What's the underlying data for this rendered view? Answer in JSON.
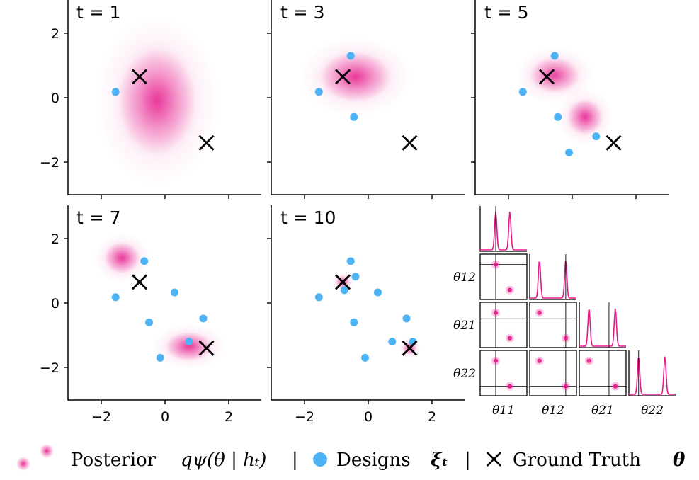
{
  "chart_data": {
    "type": "scatter",
    "xlim": [
      -3,
      3
    ],
    "ylim": [
      -3,
      3
    ],
    "xticks": [
      "−2",
      "0",
      "2"
    ],
    "yticks": [
      "2",
      "0",
      "−2"
    ],
    "ground_truth": [
      [
        -0.8,
        0.65
      ],
      [
        1.3,
        -1.4
      ]
    ],
    "panels": [
      {
        "title": "t = 1",
        "designs": [
          [
            -1.55,
            0.18
          ]
        ],
        "posterior": [
          {
            "cx": -0.25,
            "cy": -0.1,
            "sx": 0.55,
            "sy": 0.75,
            "w": 1.0
          }
        ]
      },
      {
        "title": "t = 3",
        "designs": [
          [
            -1.55,
            0.18
          ],
          [
            -0.55,
            1.3
          ],
          [
            -0.45,
            -0.6
          ]
        ],
        "posterior": [
          {
            "cx": -0.4,
            "cy": 0.65,
            "sx": 0.5,
            "sy": 0.35,
            "w": 1.0
          }
        ]
      },
      {
        "title": "t = 5",
        "designs": [
          [
            -1.55,
            0.18
          ],
          [
            -0.55,
            1.3
          ],
          [
            -0.45,
            -0.6
          ],
          [
            -0.1,
            -1.7
          ],
          [
            0.75,
            -1.2
          ]
        ],
        "posterior": [
          {
            "cx": -0.55,
            "cy": 0.7,
            "sx": 0.35,
            "sy": 0.25,
            "w": 0.9
          },
          {
            "cx": 0.4,
            "cy": -0.6,
            "sx": 0.25,
            "sy": 0.25,
            "w": 1.0
          }
        ]
      },
      {
        "title": "t = 7",
        "designs": [
          [
            -1.55,
            0.18
          ],
          [
            -0.65,
            1.3
          ],
          [
            0.3,
            0.33
          ],
          [
            -0.5,
            -0.6
          ],
          [
            -0.15,
            -1.7
          ],
          [
            0.75,
            -1.2
          ],
          [
            1.2,
            -0.48
          ]
        ],
        "posterior": [
          {
            "cx": -1.35,
            "cy": 1.4,
            "sx": 0.25,
            "sy": 0.22,
            "w": 1.0
          },
          {
            "cx": 0.75,
            "cy": -1.35,
            "sx": 0.33,
            "sy": 0.2,
            "w": 1.0
          }
        ]
      },
      {
        "title": "t = 10",
        "designs": [
          [
            -1.55,
            0.18
          ],
          [
            -0.55,
            1.3
          ],
          [
            -0.4,
            0.82
          ],
          [
            -0.75,
            0.4
          ],
          [
            0.3,
            0.33
          ],
          [
            -0.45,
            -0.6
          ],
          [
            -0.1,
            -1.7
          ],
          [
            0.75,
            -1.2
          ],
          [
            1.2,
            -0.48
          ],
          [
            1.4,
            -1.2
          ]
        ],
        "posterior": [
          {
            "cx": -0.8,
            "cy": 0.65,
            "sx": 0.1,
            "sy": 0.09,
            "w": 1.0
          },
          {
            "cx": 1.3,
            "cy": -1.4,
            "sx": 0.1,
            "sy": 0.09,
            "w": 1.0
          }
        ]
      }
    ],
    "corner_plot": {
      "parameters": [
        "θ11",
        "θ12",
        "θ21",
        "θ22"
      ],
      "row_labels": [
        "θ12",
        "θ21",
        "θ22"
      ],
      "col_labels": [
        "θ11",
        "θ12",
        "θ21",
        "θ22"
      ],
      "true_values": [
        -0.8,
        1.3,
        0.65,
        -1.4
      ],
      "marginal_modes": [
        [
          -0.8,
          0.65
        ],
        [
          -1.4,
          1.3
        ],
        [
          -1.4,
          1.3
        ],
        [
          -1.4,
          1.3
        ]
      ]
    }
  },
  "legend": {
    "posterior_label": "Posterior",
    "posterior_math": "qψ(θ | hₜ)",
    "separator": "|",
    "designs_label": "Designs",
    "designs_math": "ξₜ",
    "ground_truth_label": "Ground Truth",
    "ground_truth_math": "θ"
  },
  "colors": {
    "posterior": "#e6198a",
    "designs": "#4db3f5",
    "ground_truth": "#000000",
    "axes": "#000000"
  }
}
